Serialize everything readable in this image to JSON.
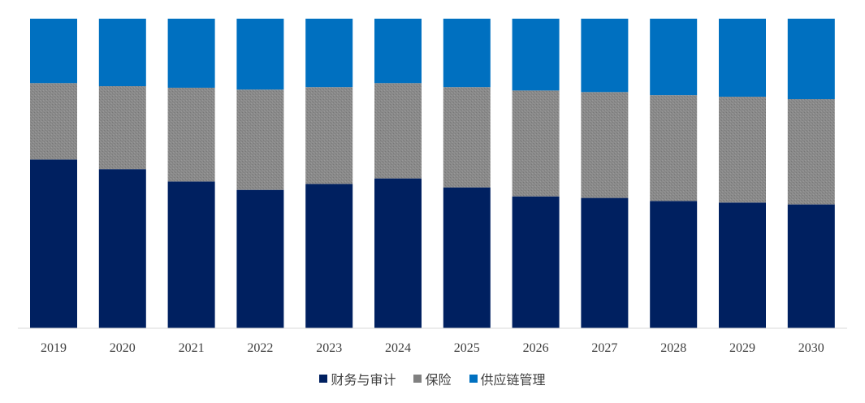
{
  "chart_data": {
    "type": "bar",
    "stacked": "percent",
    "categories": [
      "2019",
      "2020",
      "2021",
      "2022",
      "2023",
      "2024",
      "2025",
      "2026",
      "2027",
      "2028",
      "2029",
      "2030"
    ],
    "series": [
      {
        "name": "财务与审计",
        "color": "#002060",
        "values": [
          54.5,
          51.4,
          47.4,
          44.7,
          46.6,
          48.4,
          45.5,
          42.6,
          42.1,
          41.1,
          40.6,
          40.0
        ]
      },
      {
        "name": "保险",
        "color": "#808080",
        "values": [
          24.7,
          26.8,
          30.3,
          32.4,
          31.3,
          30.8,
          32.4,
          34.2,
          34.2,
          34.2,
          34.2,
          34.0
        ]
      },
      {
        "name": "供应链管理",
        "color": "#0070C0",
        "values": [
          20.8,
          21.8,
          22.3,
          22.9,
          22.1,
          20.8,
          22.1,
          23.2,
          23.7,
          24.7,
          25.2,
          26.0
        ]
      }
    ],
    "ylim": [
      0,
      100
    ],
    "grid": false,
    "legend_position": "bottom"
  }
}
